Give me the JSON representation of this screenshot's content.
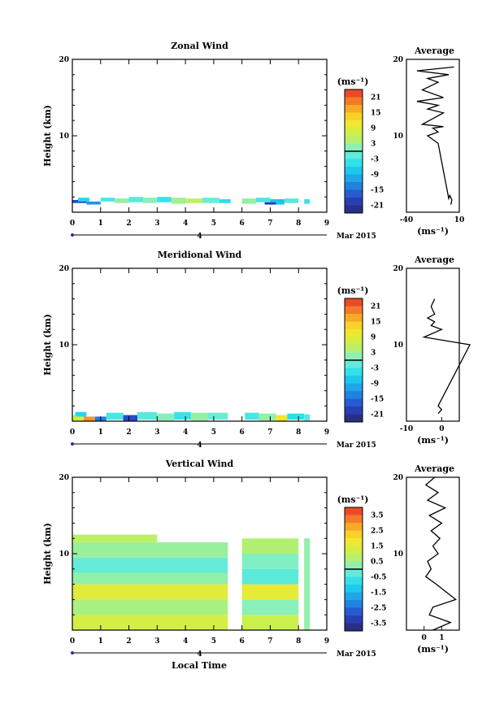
{
  "x_tick_labels": [
    "0",
    "1",
    "2",
    "3",
    "4",
    "5",
    "6",
    "7",
    "8",
    "9"
  ],
  "y_tick_labels": [
    "20",
    "10"
  ],
  "date_day": "4",
  "date_month_year": "Mar 2015",
  "ylabel": "Height (km)",
  "xlabel": "Local Time",
  "unit_label": "(ms⁻¹)",
  "avg_title": "Average",
  "chart_data": [
    {
      "type": "heatmap",
      "title": "Zonal Wind",
      "xlabel": "",
      "ylabel": "Height (km)",
      "xlim": [
        0,
        9
      ],
      "ylim": [
        0,
        20
      ],
      "colorbar": {
        "unit": "(ms⁻¹)",
        "labels": [
          "21",
          "15",
          "9",
          "3",
          "-3",
          "-9",
          "-15",
          "-21"
        ],
        "range": [
          -24,
          24
        ]
      },
      "cells": [
        [
          0.0,
          0.5,
          1.2,
          1.6,
          -18
        ],
        [
          0.5,
          1.0,
          1.0,
          1.4,
          -12
        ],
        [
          0.2,
          0.6,
          1.4,
          1.9,
          -6
        ],
        [
          1.0,
          1.5,
          1.4,
          1.9,
          -3
        ],
        [
          1.5,
          2.0,
          1.2,
          1.8,
          2
        ],
        [
          2.0,
          2.5,
          1.3,
          2.0,
          -2
        ],
        [
          2.5,
          3.0,
          1.2,
          1.9,
          1
        ],
        [
          3.0,
          3.5,
          1.3,
          2.0,
          -4
        ],
        [
          3.5,
          4.0,
          1.1,
          1.9,
          3
        ],
        [
          4.0,
          4.6,
          1.2,
          1.8,
          5
        ],
        [
          4.6,
          5.2,
          1.2,
          1.9,
          -1
        ],
        [
          5.2,
          5.6,
          1.2,
          1.7,
          -5
        ],
        [
          6.0,
          6.5,
          1.1,
          1.8,
          2
        ],
        [
          6.5,
          7.0,
          1.3,
          1.9,
          -3
        ],
        [
          7.0,
          7.5,
          1.0,
          1.7,
          -8
        ],
        [
          7.5,
          8.0,
          1.2,
          1.8,
          -2
        ],
        [
          8.2,
          8.4,
          1.1,
          1.7,
          -4
        ],
        [
          6.8,
          7.2,
          1.0,
          1.3,
          -20
        ]
      ],
      "average_profile": {
        "xlim": [
          -40,
          10
        ],
        "x_tick_labels": [
          "-40",
          "10"
        ],
        "points": [
          [
            2,
            1
          ],
          [
            3,
            1.6
          ],
          [
            1,
            2.2
          ],
          [
            0,
            1.8
          ],
          [
            -10,
            9
          ],
          [
            -20,
            10
          ],
          [
            -10,
            10.5
          ],
          [
            -15,
            11
          ],
          [
            -5,
            11.2
          ],
          [
            -25,
            11.5
          ],
          [
            -5,
            13
          ],
          [
            -20,
            13.5
          ],
          [
            -10,
            14
          ],
          [
            -30,
            14.5
          ],
          [
            -5,
            15
          ],
          [
            -25,
            16
          ],
          [
            -10,
            17
          ],
          [
            -20,
            17.5
          ],
          [
            0,
            18
          ],
          [
            -30,
            18.5
          ],
          [
            5,
            19
          ]
        ]
      }
    },
    {
      "type": "heatmap",
      "title": "Meridional Wind",
      "xlabel": "",
      "ylabel": "Height (km)",
      "xlim": [
        0,
        9
      ],
      "ylim": [
        0,
        20
      ],
      "colorbar": {
        "unit": "(ms⁻¹)",
        "labels": [
          "21",
          "15",
          "9",
          "3",
          "-3",
          "-9",
          "-15",
          "-21"
        ],
        "range": [
          -24,
          24
        ]
      },
      "cells": [
        [
          0.0,
          0.4,
          0.0,
          0.8,
          8
        ],
        [
          0.4,
          0.8,
          0.0,
          0.6,
          18
        ],
        [
          0.8,
          1.2,
          0.0,
          0.6,
          -14
        ],
        [
          0.1,
          0.5,
          0.6,
          1.2,
          -6
        ],
        [
          1.2,
          1.8,
          0.2,
          1.1,
          -3
        ],
        [
          1.8,
          2.3,
          0.0,
          0.8,
          -18
        ],
        [
          2.3,
          3.0,
          0.2,
          1.2,
          -2
        ],
        [
          3.0,
          3.6,
          0.1,
          1.0,
          1
        ],
        [
          3.6,
          4.2,
          0.2,
          1.2,
          -4
        ],
        [
          4.2,
          4.8,
          0.1,
          1.1,
          2
        ],
        [
          4.8,
          5.5,
          0.2,
          1.1,
          -1
        ],
        [
          6.1,
          6.6,
          0.2,
          1.1,
          -3
        ],
        [
          6.6,
          7.2,
          0.1,
          1.0,
          2
        ],
        [
          7.2,
          7.6,
          0.0,
          0.8,
          12
        ],
        [
          7.6,
          8.2,
          0.2,
          1.0,
          -5
        ],
        [
          8.2,
          8.4,
          0.1,
          0.9,
          -2
        ]
      ],
      "average_profile": {
        "xlim": [
          -10,
          5
        ],
        "x_tick_labels": [
          "-10",
          "0"
        ],
        "points": [
          [
            -1,
            1
          ],
          [
            0,
            1.5
          ],
          [
            -1,
            2
          ],
          [
            8,
            10
          ],
          [
            -5,
            11
          ],
          [
            0,
            12
          ],
          [
            -3,
            12.5
          ],
          [
            -2,
            13
          ],
          [
            -4,
            13.5
          ],
          [
            -2,
            14
          ],
          [
            -3,
            15
          ],
          [
            -2,
            16
          ]
        ]
      }
    },
    {
      "type": "heatmap",
      "title": "Vertical Wind",
      "xlabel": "Local Time",
      "ylabel": "Height (km)",
      "xlim": [
        0,
        9
      ],
      "ylim": [
        0,
        20
      ],
      "colorbar": {
        "unit": "(ms⁻¹)",
        "labels": [
          "3.5",
          "2.5",
          "1.5",
          "0.5",
          "-0.5",
          "-1.5",
          "-2.5",
          "-3.5"
        ],
        "range": [
          -4,
          4
        ]
      },
      "cells": [
        [
          0.0,
          5.5,
          0.0,
          2.0,
          1.2
        ],
        [
          0.0,
          5.5,
          2.0,
          4.0,
          0.6
        ],
        [
          0.0,
          5.5,
          4.0,
          6.0,
          1.5
        ],
        [
          0.0,
          5.5,
          6.0,
          7.5,
          0.3
        ],
        [
          0.0,
          5.5,
          7.5,
          9.5,
          -0.2
        ],
        [
          0.0,
          5.5,
          9.5,
          11.5,
          0.4
        ],
        [
          0.0,
          3.0,
          11.5,
          12.5,
          0.8
        ],
        [
          6.0,
          8.0,
          0.0,
          2.0,
          1.0
        ],
        [
          6.0,
          8.0,
          2.0,
          4.0,
          0.2
        ],
        [
          6.0,
          8.0,
          4.0,
          6.0,
          1.6
        ],
        [
          6.0,
          8.0,
          6.0,
          8.0,
          -0.3
        ],
        [
          6.0,
          8.0,
          8.0,
          10.0,
          0.1
        ],
        [
          6.0,
          8.0,
          10.0,
          12.0,
          0.7
        ],
        [
          8.2,
          8.4,
          0.0,
          12.0,
          0.3
        ]
      ],
      "average_profile": {
        "xlim": [
          -1,
          2
        ],
        "x_tick_labels": [
          "0",
          "1"
        ],
        "points": [
          [
            0.5,
            0
          ],
          [
            1.5,
            1
          ],
          [
            0.3,
            2
          ],
          [
            0.5,
            3
          ],
          [
            1.8,
            4
          ],
          [
            0.7,
            6
          ],
          [
            0.1,
            7
          ],
          [
            0.4,
            8
          ],
          [
            0.2,
            9
          ],
          [
            0.8,
            10
          ],
          [
            0.5,
            11
          ],
          [
            0.9,
            12
          ],
          [
            0.4,
            13
          ],
          [
            1.0,
            14
          ],
          [
            0.3,
            15
          ],
          [
            1.2,
            16
          ],
          [
            0.2,
            17
          ],
          [
            0.8,
            18
          ],
          [
            0.1,
            19
          ],
          [
            0.6,
            20
          ]
        ]
      }
    }
  ]
}
